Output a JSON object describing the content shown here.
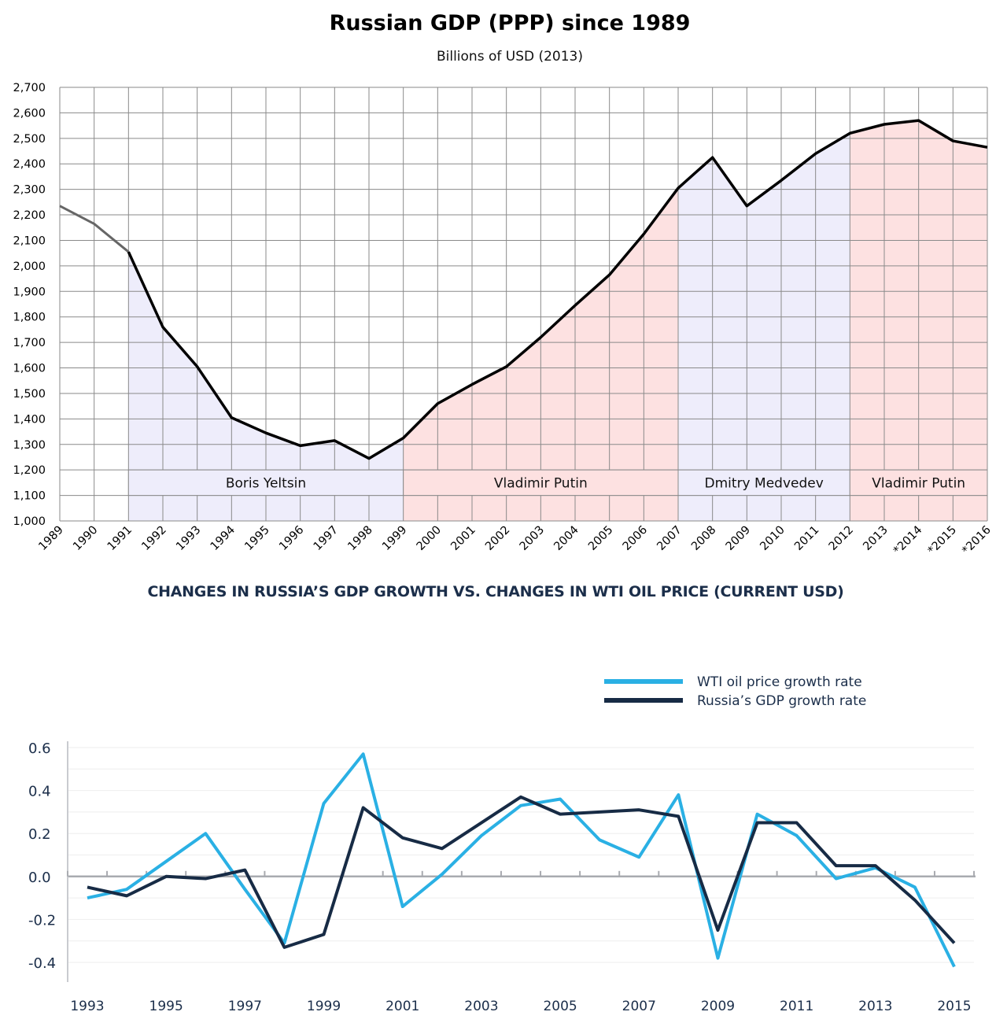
{
  "chart_data": [
    {
      "type": "line",
      "title": "Russian GDP (PPP) since 1989",
      "subtitle": "Billions of USD (2013)",
      "xlabel": "",
      "ylabel": "",
      "ylim": [
        1000,
        2700
      ],
      "y_ticks": [
        "1,000",
        "1,100",
        "1,200",
        "1,300",
        "1,400",
        "1,500",
        "1,600",
        "1,700",
        "1,800",
        "1,900",
        "2,000",
        "2,100",
        "2,200",
        "2,300",
        "2,400",
        "2,500",
        "2,600",
        "2,700"
      ],
      "categories": [
        "1989",
        "1990",
        "1991",
        "1992",
        "1993",
        "1994",
        "1995",
        "1996",
        "1997",
        "1998",
        "1999",
        "2000",
        "2001",
        "2002",
        "2003",
        "2004",
        "2005",
        "2006",
        "2007",
        "2008",
        "2009",
        "2010",
        "2011",
        "2012",
        "2013",
        "*2014",
        "*2015",
        "*2016"
      ],
      "series": [
        {
          "values": [
            2235,
            2165,
            2055,
            1760,
            1605,
            1405,
            1345,
            1295,
            1315,
            1245,
            1325,
            1460,
            1535,
            1605,
            1720,
            1845,
            1965,
            2125,
            2305,
            2425,
            2235,
            2335,
            2440,
            2520,
            2555,
            2570,
            2490,
            2465
          ]
        }
      ],
      "periods": [
        {
          "label": "Boris Yeltsin",
          "start": "1991",
          "end": "1999",
          "color": "#eeedfb"
        },
        {
          "label": "Vladimir Putin",
          "start": "1999",
          "end": "2007",
          "color": "#fde1e1"
        },
        {
          "label": "Dmitry Medvedev",
          "start": "2007",
          "end": "2012",
          "color": "#eeedfb"
        },
        {
          "label": "Vladimir Putin",
          "start": "2012",
          "end": "*2016",
          "color": "#fde1e1"
        }
      ],
      "grid": true
    },
    {
      "type": "line",
      "title": "CHANGES IN RUSSIA’S GDP GROWTH VS. CHANGES IN WTI OIL PRICE (CURRENT USD)",
      "xlabel": "",
      "ylabel": "",
      "ylim": [
        -0.45,
        0.6
      ],
      "y_ticks": [
        "0.6",
        "0.4",
        "0.2",
        "0.0",
        "-0.2",
        "-0.4"
      ],
      "x": [
        1993,
        1994,
        1995,
        1996,
        1997,
        1998,
        1999,
        2000,
        2001,
        2002,
        2003,
        2004,
        2005,
        2006,
        2007,
        2008,
        2009,
        2010,
        2011,
        2012,
        2013,
        2014,
        2015
      ],
      "x_tick_labels": [
        "1993",
        "1995",
        "1997",
        "1999",
        "2001",
        "2003",
        "2005",
        "2007",
        "2009",
        "2011",
        "2013",
        "2015"
      ],
      "legend_position": "top-right",
      "series": [
        {
          "name": "WTI oil price growth rate",
          "color": "#2ab0e4",
          "values": [
            -0.1,
            -0.06,
            0.07,
            0.2,
            -0.06,
            -0.31,
            0.34,
            0.57,
            -0.14,
            0.01,
            0.19,
            0.33,
            0.36,
            0.17,
            0.09,
            0.38,
            -0.38,
            0.29,
            0.19,
            -0.01,
            0.04,
            -0.05,
            -0.42
          ]
        },
        {
          "name": "Russia’s GDP growth rate",
          "color": "#172b45",
          "values": [
            -0.05,
            -0.09,
            0.0,
            -0.01,
            0.03,
            -0.33,
            -0.27,
            0.32,
            0.18,
            0.13,
            0.25,
            0.37,
            0.29,
            0.3,
            0.31,
            0.28,
            -0.25,
            0.25,
            0.25,
            0.05,
            0.05,
            -0.11,
            -0.31
          ]
        }
      ],
      "grid": false
    }
  ]
}
